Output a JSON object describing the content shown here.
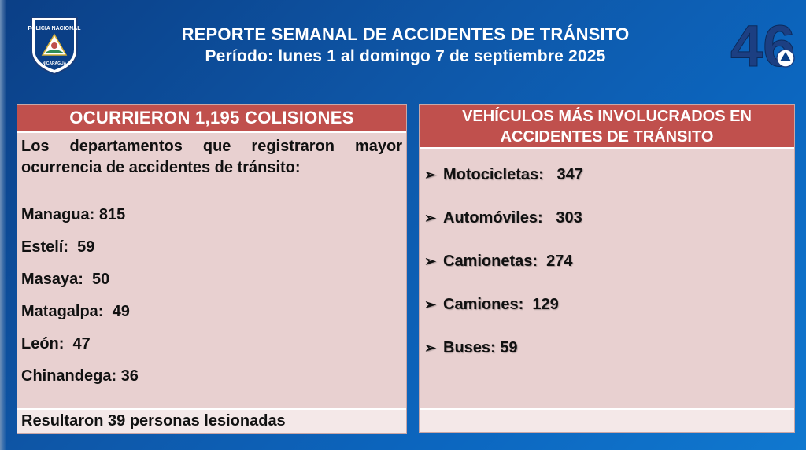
{
  "header": {
    "title": "REPORTE SEMANAL DE ACCIDENTES DE TRÁNSITO",
    "period": "Período: lunes 1 al domingo 7 de septiembre 2025",
    "logo_left_text_top": "POLICIA NACIONAL",
    "logo_left_text_bottom": "NICARAGUA",
    "logo_right_number": "46"
  },
  "left_panel": {
    "heading": "OCURRIERON 1,195 COLISIONES",
    "intro": "Los departamentos que registraron mayor ocurrencia de accidentes de tránsito:",
    "departments": [
      {
        "label": "Managua: 815"
      },
      {
        "label": "Estelí:  59"
      },
      {
        "label": "Masaya:  50"
      },
      {
        "label": "Matagalpa:  49"
      },
      {
        "label": "León:  47"
      },
      {
        "label": "Chinandega: 36"
      }
    ],
    "footer": "Resultaron 39 personas lesionadas"
  },
  "right_panel": {
    "heading_line1": "VEHÍCULOS MÁS INVOLUCRADOS EN",
    "heading_line2": "ACCIDENTES DE TRÁNSITO",
    "bullet_icon": "chevron-right-icon",
    "vehicles": [
      {
        "label": "Motocicletas:   347"
      },
      {
        "label": "Automóviles:   303"
      },
      {
        "label": "Camionetas:  274"
      },
      {
        "label": "Camiones:  129"
      },
      {
        "label": "Buses: 59"
      }
    ]
  },
  "colors": {
    "header_red": "#c0504d",
    "panel_pink": "#e8d0d0",
    "background_blue": "#0e57a8"
  }
}
